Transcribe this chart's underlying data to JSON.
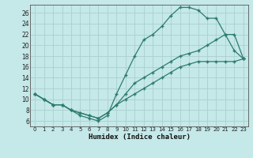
{
  "xlabel": "Humidex (Indice chaleur)",
  "bg_color": "#c5e8e8",
  "line_color": "#2d7b6e",
  "grid_color": "#aad0d0",
  "xlim": [
    -0.5,
    23.5
  ],
  "ylim": [
    5.0,
    27.5
  ],
  "xticks": [
    0,
    1,
    2,
    3,
    4,
    5,
    6,
    7,
    8,
    9,
    10,
    11,
    12,
    13,
    14,
    15,
    16,
    17,
    18,
    19,
    20,
    21,
    22,
    23
  ],
  "yticks": [
    6,
    8,
    10,
    12,
    14,
    16,
    18,
    20,
    22,
    24,
    26
  ],
  "curve_top": {
    "x": [
      0,
      1,
      2,
      3,
      4,
      5,
      6,
      7,
      8,
      9,
      10,
      11,
      12,
      13,
      14,
      15,
      16,
      17,
      18,
      19,
      20,
      21,
      22,
      23
    ],
    "y": [
      11,
      10,
      9,
      9,
      8,
      7,
      6.5,
      6,
      7,
      11,
      14.5,
      18,
      21,
      22,
      23.5,
      25.5,
      27,
      27,
      26.5,
      25,
      25,
      22,
      19,
      17.5
    ]
  },
  "curve_mid": {
    "x": [
      0,
      1,
      2,
      3,
      4,
      5,
      6,
      7,
      8,
      9,
      10,
      11,
      12,
      13,
      14,
      15,
      16,
      17,
      18,
      19,
      20,
      21,
      22,
      23
    ],
    "y": [
      11,
      10,
      9,
      9,
      8,
      7.5,
      7,
      6.5,
      7.5,
      9,
      11,
      13,
      14,
      15,
      16,
      17,
      18,
      18.5,
      19,
      20,
      21,
      22,
      22,
      17.5
    ]
  },
  "curve_bot": {
    "x": [
      0,
      1,
      2,
      3,
      4,
      5,
      6,
      7,
      8,
      9,
      10,
      11,
      12,
      13,
      14,
      15,
      16,
      17,
      18,
      19,
      20,
      21,
      22,
      23
    ],
    "y": [
      11,
      10,
      9,
      9,
      8,
      7.5,
      7,
      6.5,
      7.5,
      9,
      10,
      11,
      12,
      13,
      14,
      15,
      16,
      16.5,
      17,
      17,
      17,
      17,
      17,
      17.5
    ]
  }
}
